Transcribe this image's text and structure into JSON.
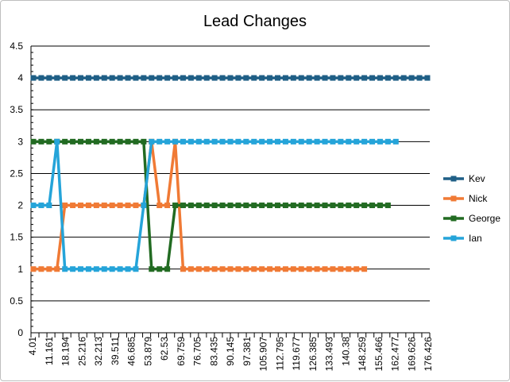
{
  "chart_data": {
    "type": "line",
    "title": "Lead Changes",
    "xlabel": "",
    "ylabel": "",
    "ylim": [
      0,
      4.5
    ],
    "y_ticks": [
      "0",
      "0.5",
      "1",
      "1.5",
      "2",
      "2.5",
      "3",
      "3.5",
      "4",
      "4.5"
    ],
    "x_tick_labels": [
      "4.01",
      "11.161",
      "18.194",
      "25.216",
      "32.213",
      "39.511",
      "46.685",
      "53.879",
      "62.53",
      "69.759",
      "76.705",
      "83.435",
      "90.145",
      "97.381",
      "105.907",
      "112.795",
      "119.677",
      "126.385",
      "133.493",
      "140.38",
      "148.259",
      "155.466",
      "162.477",
      "169.626",
      "176.426"
    ],
    "grid": true,
    "legend_position": "right",
    "marker": "square",
    "series": [
      {
        "name": "Kev",
        "color": "#1f5f86",
        "values": [
          4,
          4,
          4,
          4,
          4,
          4,
          4,
          4,
          4,
          4,
          4,
          4,
          4,
          4,
          4,
          4,
          4,
          4,
          4,
          4,
          4,
          4,
          4,
          4,
          4,
          4,
          4,
          4,
          4,
          4,
          4,
          4,
          4,
          4,
          4,
          4,
          4,
          4,
          4,
          4,
          4,
          4,
          4,
          4,
          4,
          4,
          4,
          4,
          4,
          4,
          4
        ]
      },
      {
        "name": "Nick",
        "color": "#f07a35",
        "values": [
          1,
          1,
          1,
          1,
          2,
          2,
          2,
          2,
          2,
          2,
          2,
          2,
          2,
          2,
          2,
          3,
          2,
          2,
          3,
          1,
          1,
          1,
          1,
          1,
          1,
          1,
          1,
          1,
          1,
          1,
          1,
          1,
          1,
          1,
          1,
          1,
          1,
          1,
          1,
          1,
          1,
          1,
          1
        ]
      },
      {
        "name": "George",
        "color": "#226b22",
        "values": [
          3,
          3,
          3,
          3,
          3,
          3,
          3,
          3,
          3,
          3,
          3,
          3,
          3,
          3,
          3,
          1,
          1,
          1,
          2,
          2,
          2,
          2,
          2,
          2,
          2,
          2,
          2,
          2,
          2,
          2,
          2,
          2,
          2,
          2,
          2,
          2,
          2,
          2,
          2,
          2,
          2,
          2,
          2,
          2,
          2,
          2
        ]
      },
      {
        "name": "Ian",
        "color": "#25a4d9",
        "values": [
          2,
          2,
          2,
          3,
          1,
          1,
          1,
          1,
          1,
          1,
          1,
          1,
          1,
          1,
          2,
          3,
          3,
          3,
          3,
          3,
          3,
          3,
          3,
          3,
          3,
          3,
          3,
          3,
          3,
          3,
          3,
          3,
          3,
          3,
          3,
          3,
          3,
          3,
          3,
          3,
          3,
          3,
          3,
          3,
          3,
          3,
          3
        ]
      }
    ]
  }
}
